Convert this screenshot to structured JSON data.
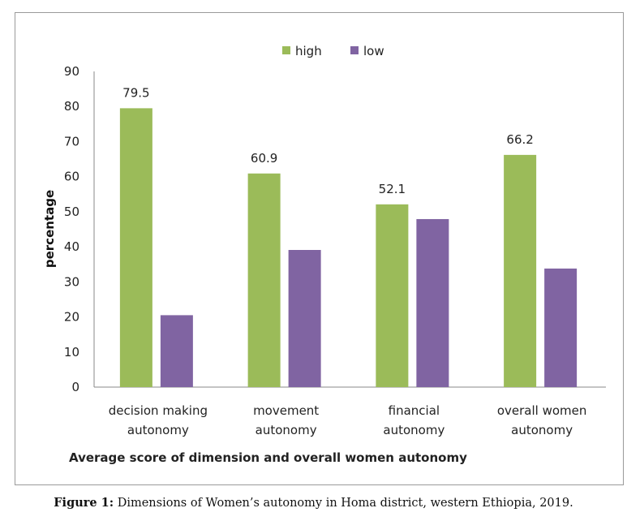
{
  "chart_data": {
    "type": "bar",
    "categories": [
      [
        "decision making",
        "autonomy"
      ],
      [
        "movement",
        "autonomy"
      ],
      [
        "financial",
        "autonomy"
      ],
      [
        "overall women",
        "autonomy"
      ]
    ],
    "series": [
      {
        "name": "high",
        "values": [
          79.5,
          60.9,
          52.1,
          66.2
        ],
        "color": "#9bbb59",
        "labels": [
          "79.5",
          "60.9",
          "52.1",
          "66.2"
        ]
      },
      {
        "name": "low",
        "values": [
          20.5,
          39.1,
          47.9,
          33.8
        ],
        "color": "#8064a2"
      }
    ],
    "xlabel": "Average score of dimension and overall women autonomy",
    "ylabel": "percentage",
    "ylim": [
      0,
      90
    ],
    "yticks": [
      0,
      10,
      20,
      30,
      40,
      50,
      60,
      70,
      80,
      90
    ],
    "grid": false,
    "legend": "top"
  },
  "caption": {
    "label": "Figure 1:",
    "text": " Dimensions of Women’s autonomy in Homa district, western Ethiopia, 2019."
  }
}
